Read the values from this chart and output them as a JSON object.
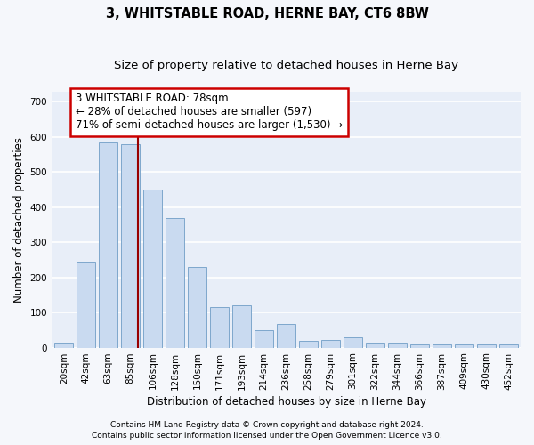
{
  "title": "3, WHITSTABLE ROAD, HERNE BAY, CT6 8BW",
  "subtitle": "Size of property relative to detached houses in Herne Bay",
  "xlabel": "Distribution of detached houses by size in Herne Bay",
  "ylabel": "Number of detached properties",
  "categories": [
    "20sqm",
    "42sqm",
    "63sqm",
    "85sqm",
    "106sqm",
    "128sqm",
    "150sqm",
    "171sqm",
    "193sqm",
    "214sqm",
    "236sqm",
    "258sqm",
    "279sqm",
    "301sqm",
    "322sqm",
    "344sqm",
    "366sqm",
    "387sqm",
    "409sqm",
    "430sqm",
    "452sqm"
  ],
  "bar_values": [
    15,
    245,
    585,
    580,
    450,
    370,
    230,
    115,
    120,
    50,
    68,
    20,
    22,
    30,
    13,
    13,
    10,
    10,
    8,
    8,
    8
  ],
  "bar_color": "#c9daf0",
  "bar_edge_color": "#7ea7cc",
  "vline_x_index": 3.35,
  "vline_color": "#990000",
  "annotation_text": "3 WHITSTABLE ROAD: 78sqm\n← 28% of detached houses are smaller (597)\n71% of semi-detached houses are larger (1,530) →",
  "annotation_box_facecolor": "#ffffff",
  "annotation_box_edgecolor": "#cc0000",
  "ylim": [
    0,
    730
  ],
  "yticks": [
    0,
    100,
    200,
    300,
    400,
    500,
    600,
    700
  ],
  "fig_bg": "#f5f7fb",
  "ax_bg": "#e8eef8",
  "grid_color": "#ffffff",
  "footer_line1": "Contains HM Land Registry data © Crown copyright and database right 2024.",
  "footer_line2": "Contains public sector information licensed under the Open Government Licence v3.0.",
  "title_fontsize": 10.5,
  "subtitle_fontsize": 9.5,
  "annotation_fontsize": 8.5,
  "xlabel_fontsize": 8.5,
  "ylabel_fontsize": 8.5,
  "tick_fontsize": 7.5,
  "footer_fontsize": 6.5
}
